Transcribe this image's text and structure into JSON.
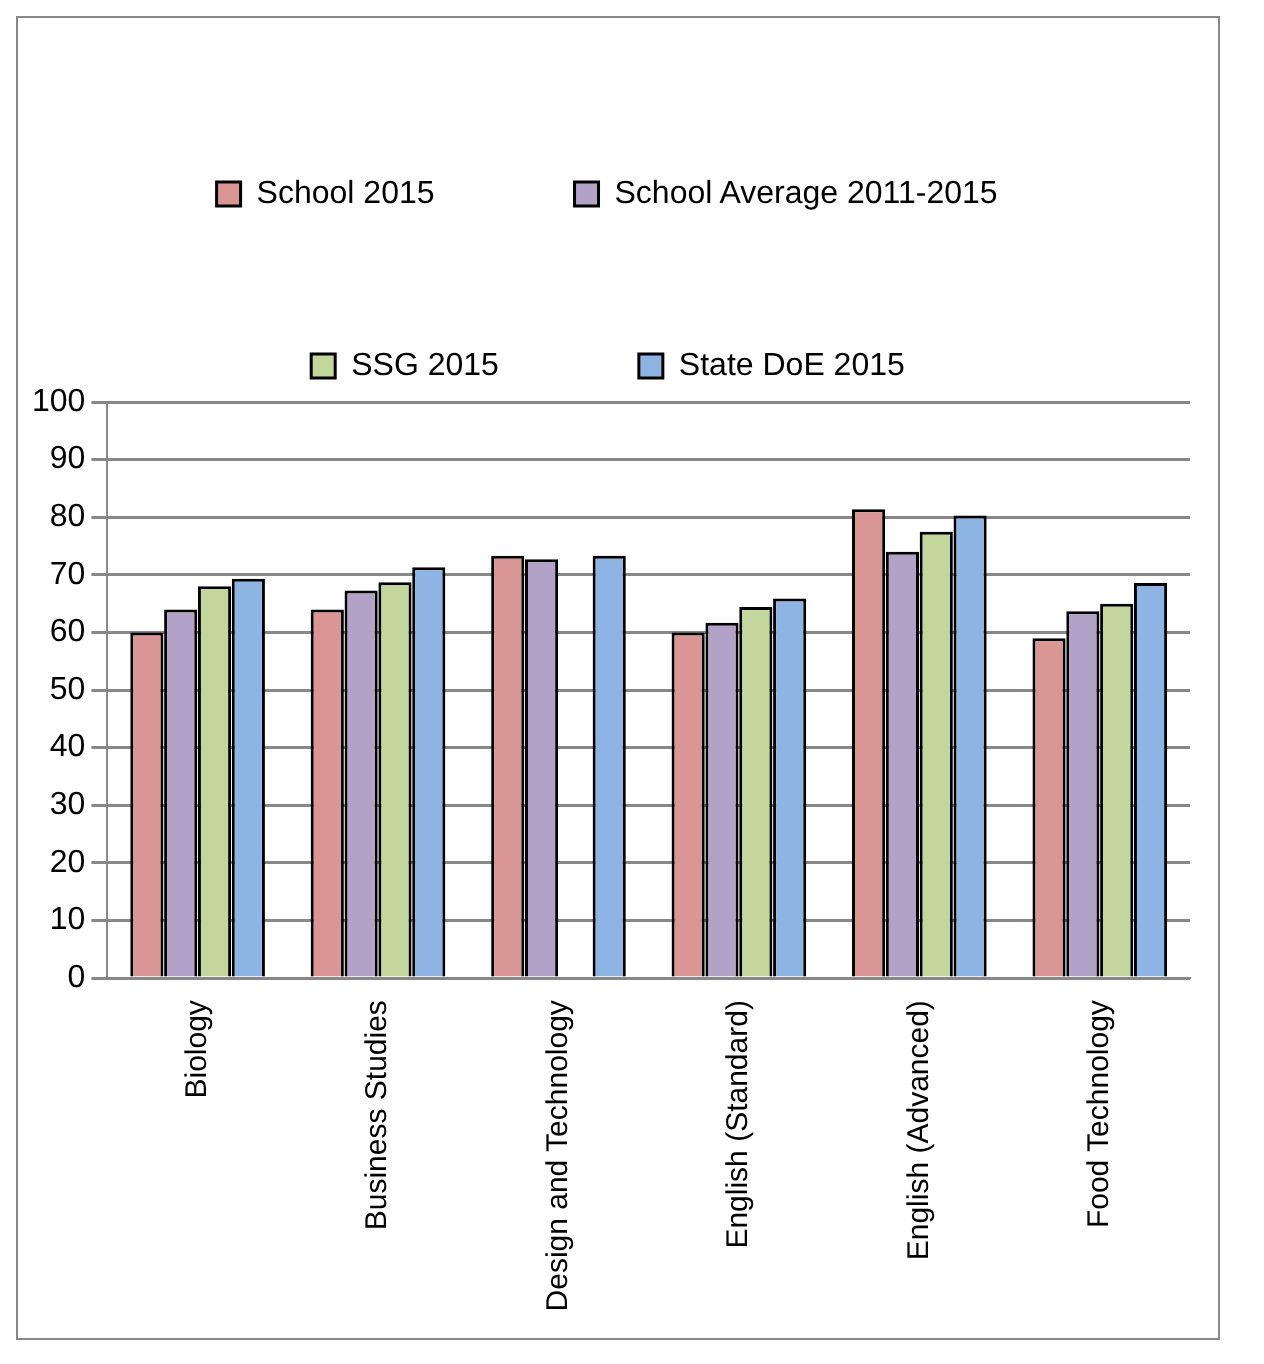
{
  "chart_data": {
    "type": "bar",
    "categories": [
      "Biology",
      "Business Studies",
      "Design and Technology",
      "English (Standard)",
      "English (Advanced)",
      "Food Technology"
    ],
    "series": [
      {
        "name": "School 2015",
        "color": "#d99694",
        "values": [
          60,
          64,
          73.3,
          60,
          81.4,
          59
        ]
      },
      {
        "name": "School Average 2011-2015",
        "color": "#b3a2c7",
        "values": [
          64,
          67.3,
          72.7,
          61.7,
          74,
          63.7
        ]
      },
      {
        "name": "SSG 2015",
        "color": "#c3d69b",
        "values": [
          68,
          68.7,
          null,
          64.4,
          77.5,
          65
        ]
      },
      {
        "name": "State DoE 2015",
        "color": "#8eb4e3",
        "values": [
          69.3,
          71.3,
          73.3,
          65.9,
          80.3,
          68.6
        ]
      }
    ],
    "ylim": [
      0,
      100
    ],
    "yticks": [
      0,
      10,
      20,
      30,
      40,
      50,
      60,
      70,
      80,
      90,
      100
    ],
    "grid": "y",
    "legend": "top"
  }
}
